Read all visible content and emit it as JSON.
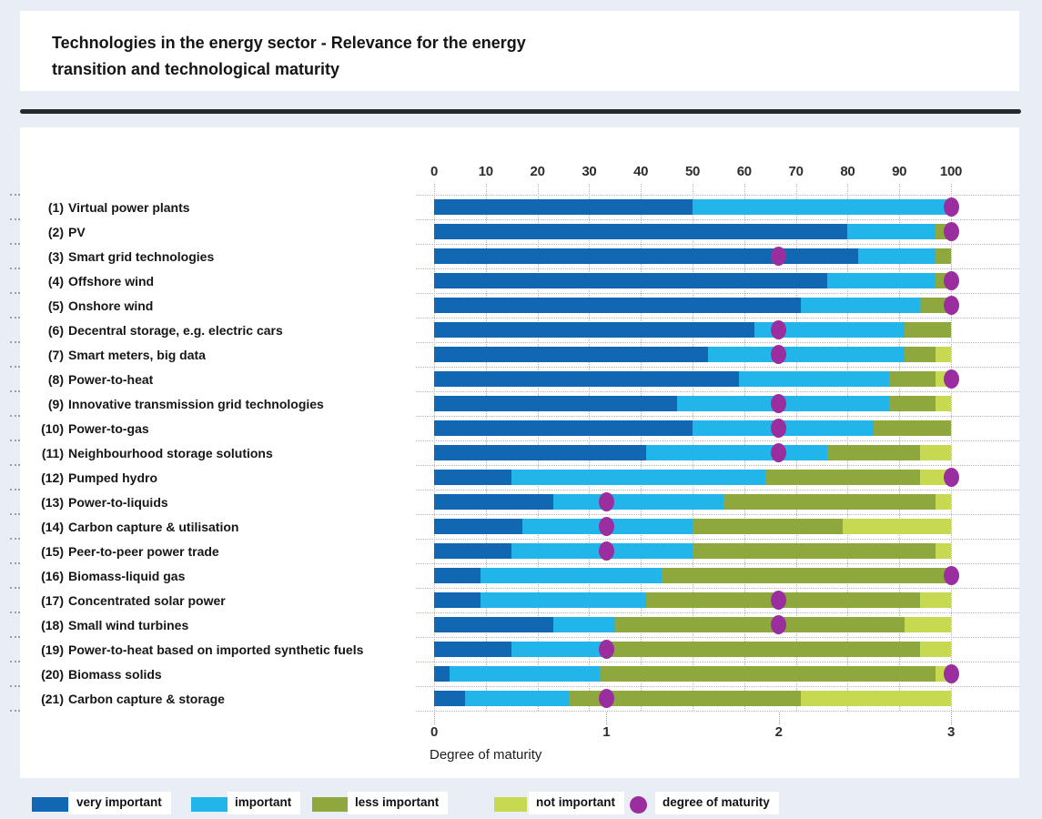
{
  "title": {
    "lines": [
      "Technologies in the energy sector - Relevance for the energy",
      "transition and technological maturity"
    ]
  },
  "chart_data": {
    "type": "bar",
    "stacked": true,
    "orientation": "horizontal",
    "top_axis": {
      "ticks": [
        0,
        10,
        20,
        30,
        40,
        50,
        60,
        70,
        80,
        90,
        100
      ],
      "range": [
        0,
        100
      ]
    },
    "bottom_axis": {
      "label": "Degree of maturity",
      "ticks": [
        0,
        1,
        2,
        3
      ],
      "range": [
        0,
        3
      ]
    },
    "series_names": [
      "very important",
      "important",
      "less important",
      "not important"
    ],
    "maturity_series_name": "degree of maturity",
    "colors": {
      "very_important": "#1167B2",
      "important": "#22B5E9",
      "less_important": "#8FA83D",
      "not_important": "#C6D950",
      "maturity_dot": "#9A2E9E"
    },
    "rows": [
      {
        "num": "(1)",
        "name": "Virtual power plants",
        "values": [
          50,
          50,
          0,
          0
        ],
        "maturity": 3
      },
      {
        "num": "(2)",
        "name": "PV",
        "values": [
          80,
          17,
          3,
          0
        ],
        "maturity": 3
      },
      {
        "num": "(3)",
        "name": "Smart grid technologies",
        "values": [
          82,
          15,
          3,
          0
        ],
        "maturity": 2
      },
      {
        "num": "(4)",
        "name": "Offshore wind",
        "values": [
          76,
          21,
          3,
          0
        ],
        "maturity": 3
      },
      {
        "num": "(5)",
        "name": "Onshore wind",
        "values": [
          71,
          23,
          6,
          0
        ],
        "maturity": 3
      },
      {
        "num": "(6)",
        "name": "Decentral storage, e.g. electric cars",
        "values": [
          62,
          29,
          9,
          0
        ],
        "maturity": 2
      },
      {
        "num": "(7)",
        "name": "Smart meters, big data",
        "values": [
          53,
          38,
          6,
          3
        ],
        "maturity": 2
      },
      {
        "num": "(8)",
        "name": "Power-to-heat",
        "values": [
          59,
          29,
          9,
          3
        ],
        "maturity": 3
      },
      {
        "num": "(9)",
        "name": "Innovative transmission grid technologies",
        "values": [
          47,
          41,
          9,
          3
        ],
        "maturity": 2
      },
      {
        "num": "(10)",
        "name": "Power-to-gas",
        "values": [
          50,
          35,
          15,
          0
        ],
        "maturity": 2
      },
      {
        "num": "(11)",
        "name": "Neighbourhood storage solutions",
        "values": [
          41,
          35,
          18,
          6
        ],
        "maturity": 2
      },
      {
        "num": "(12)",
        "name": "Pumped hydro",
        "values": [
          15,
          49,
          30,
          6
        ],
        "maturity": 3
      },
      {
        "num": "(13)",
        "name": "Power-to-liquids",
        "values": [
          23,
          33,
          41,
          3
        ],
        "maturity": 1
      },
      {
        "num": "(14)",
        "name": "Carbon capture & utilisation",
        "values": [
          17,
          33,
          29,
          21
        ],
        "maturity": 1
      },
      {
        "num": "(15)",
        "name": "Peer-to-peer power trade",
        "values": [
          15,
          35,
          47,
          3
        ],
        "maturity": 1
      },
      {
        "num": "(16)",
        "name": "Biomass-liquid gas",
        "values": [
          9,
          35,
          56,
          0
        ],
        "maturity": 3
      },
      {
        "num": "(17)",
        "name": "Concentrated solar power",
        "values": [
          9,
          32,
          53,
          6
        ],
        "maturity": 2
      },
      {
        "num": "(18)",
        "name": "Small wind turbines",
        "values": [
          23,
          12,
          56,
          9
        ],
        "maturity": 2
      },
      {
        "num": "(19)",
        "name": "Power-to-heat based on imported synthetic fuels",
        "values": [
          15,
          18,
          61,
          6
        ],
        "maturity": 1
      },
      {
        "num": "(20)",
        "name": "Biomass solids",
        "values": [
          3,
          29,
          65,
          3
        ],
        "maturity": 3
      },
      {
        "num": "(21)",
        "name": "Carbon capture & storage",
        "values": [
          6,
          20,
          45,
          29
        ],
        "maturity": 1
      }
    ]
  },
  "legend": {
    "items": [
      {
        "label": "very important"
      },
      {
        "label": "important"
      },
      {
        "label": "less important"
      },
      {
        "label": "not important"
      },
      {
        "label": "degree of maturity"
      }
    ]
  }
}
